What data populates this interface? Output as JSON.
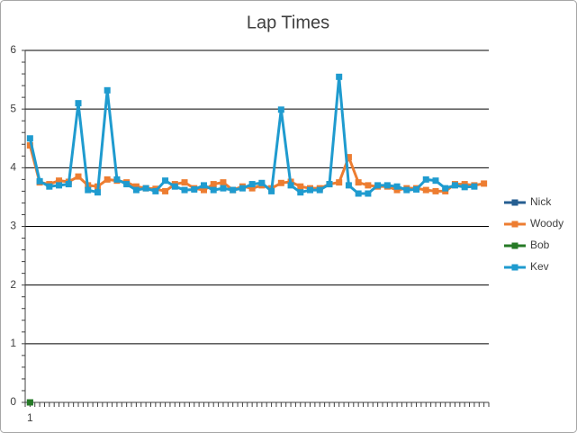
{
  "chart_data": {
    "type": "line",
    "title": "Lap Times",
    "categories": [
      "1",
      null,
      null,
      null,
      null,
      null,
      null,
      null,
      null,
      null,
      null,
      null,
      null,
      null,
      null,
      null,
      null,
      null,
      null,
      null,
      null,
      null,
      null,
      null,
      null,
      null,
      null,
      null,
      null,
      null,
      null,
      null,
      null,
      null,
      null,
      null,
      null,
      null,
      null,
      null,
      null,
      null,
      null,
      null,
      null,
      null,
      null,
      null
    ],
    "series": [
      {
        "name": "Nick",
        "color": "#255e91",
        "values": [
          0,
          null,
          null,
          null,
          null,
          null,
          null,
          null,
          null,
          null,
          null,
          null,
          null,
          null,
          null,
          null,
          null,
          null,
          null,
          null,
          null,
          null,
          null,
          null,
          null,
          null,
          null,
          null,
          null,
          null,
          null,
          null,
          null,
          null,
          null,
          null,
          null,
          null,
          null,
          null,
          null,
          null,
          null,
          null,
          null,
          null,
          null,
          null
        ]
      },
      {
        "name": "Woody",
        "color": "#ed7d31",
        "values": [
          4.38,
          3.75,
          3.72,
          3.78,
          3.76,
          3.85,
          3.7,
          3.68,
          3.8,
          3.78,
          3.75,
          3.68,
          3.65,
          3.64,
          3.6,
          3.72,
          3.75,
          3.65,
          3.62,
          3.72,
          3.75,
          3.62,
          3.68,
          3.65,
          3.7,
          3.65,
          3.74,
          3.76,
          3.68,
          3.65,
          3.65,
          3.72,
          3.75,
          4.18,
          3.75,
          3.7,
          3.68,
          3.68,
          3.62,
          3.65,
          3.65,
          3.62,
          3.6,
          3.6,
          3.72,
          3.72,
          3.7,
          3.73
        ]
      },
      {
        "name": "Bob",
        "color": "#267a26",
        "values": [
          0,
          null,
          null,
          null,
          null,
          null,
          null,
          null,
          null,
          null,
          null,
          null,
          null,
          null,
          null,
          null,
          null,
          null,
          null,
          null,
          null,
          null,
          null,
          null,
          null,
          null,
          null,
          null,
          null,
          null,
          null,
          null,
          null,
          null,
          null,
          null,
          null,
          null,
          null,
          null,
          null,
          null,
          null,
          null,
          null,
          null,
          null,
          null
        ]
      },
      {
        "name": "Kev",
        "color": "#1f9bcf",
        "values": [
          4.5,
          3.77,
          3.68,
          3.7,
          3.72,
          5.1,
          3.62,
          3.58,
          5.32,
          3.8,
          3.72,
          3.62,
          3.65,
          3.6,
          3.78,
          3.68,
          3.62,
          3.63,
          3.7,
          3.62,
          3.65,
          3.62,
          3.65,
          3.72,
          3.74,
          3.6,
          4.99,
          3.7,
          3.58,
          3.62,
          3.62,
          3.72,
          5.55,
          3.7,
          3.56,
          3.56,
          3.7,
          3.7,
          3.68,
          3.62,
          3.63,
          3.8,
          3.78,
          3.65,
          3.7,
          3.67,
          3.68,
          null
        ]
      }
    ],
    "ylim": [
      0,
      6
    ],
    "yticks": [
      0,
      1,
      2,
      3,
      4,
      5,
      6
    ],
    "grid": true,
    "legend": "right"
  }
}
